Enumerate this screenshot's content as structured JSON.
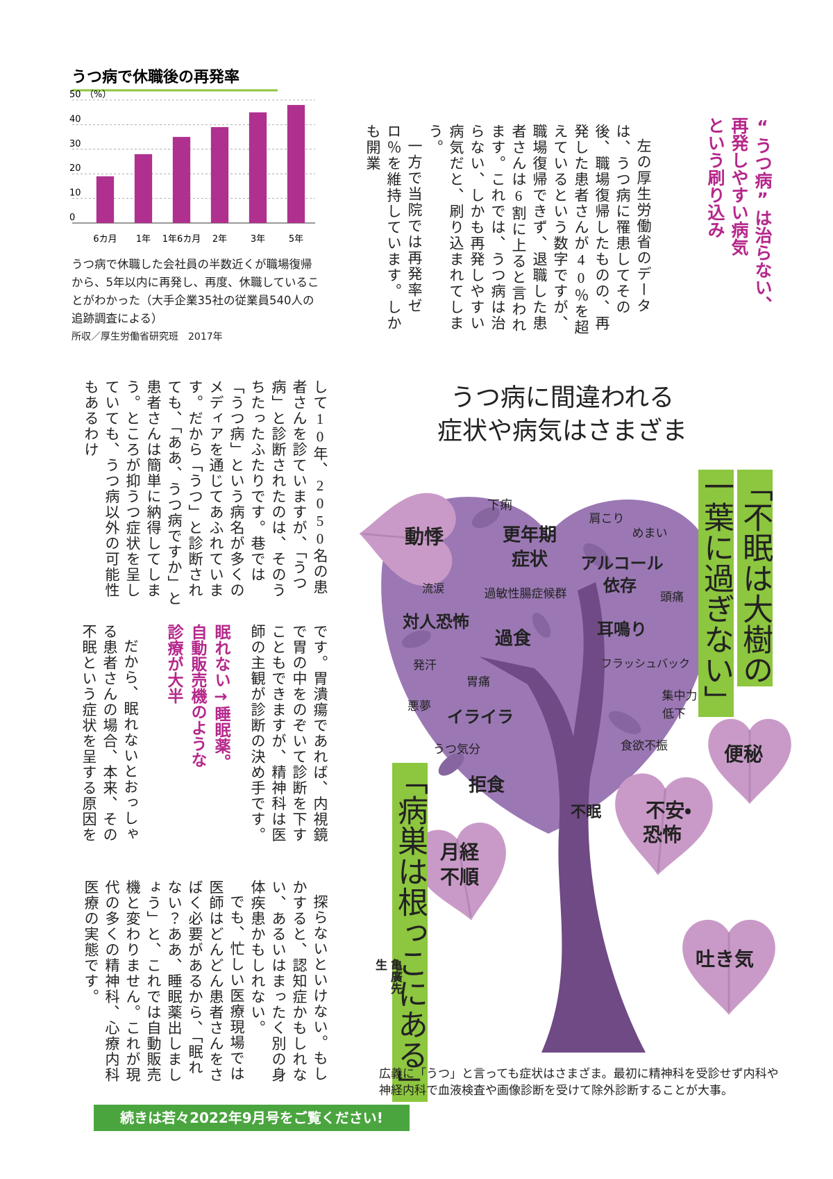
{
  "chart_data": {
    "type": "bar",
    "title": "うつ病で休職後の再発率",
    "y_unit": "（%）",
    "categories": [
      "6カ月",
      "1年",
      "1年6カ月",
      "2年",
      "3年",
      "5年"
    ],
    "values": [
      19,
      28,
      35,
      39,
      45,
      48
    ],
    "color": "#b0308f",
    "ylim": [
      0,
      50
    ],
    "yticks": [
      0,
      10,
      20,
      30,
      40,
      50
    ],
    "grid": true
  },
  "chart_caption": "うつ病で休職した会社員の半数近くが職場復帰から、5年以内に再発し、再度、休職していることがわかった（大手企業35社の従業員540人の追跡調査による）",
  "chart_source": "所収／厚生労働省研究班　2017年",
  "heading": {
    "lines": [
      "“うつ病”は治らない、",
      "再発しやすい病気",
      "という刷り込み"
    ]
  },
  "body": {
    "top": [
      "左の厚生労働省のデータは、うつ病に罹患してその後、職場復帰したものの、再発した患者さんが40％を超えているという数字ですが、職場復帰できず、退職した患者さんは6割に上ると言われます。これでは、うつ病は治らない、しかも再発しやすい病気だと、刷り込まれてしまう。",
      "一方で当院では再発率ゼロ％を維持しています。しかも開業"
    ],
    "tier1": "して10年、2050名の患者さんを診ていますが、「うつ病」と診断されたのは、そのうちたったふたりです。巷では「うつ病」という病名が多くのメディアを通じてあふれています。だから「うつ」と診断されても、「ああ、うつ病ですか」と患者さんは簡単に納得してしまう。ところが抑うつ症状を呈していても、うつ病以外の可能性もあるわけ",
    "tier2a": "です。胃潰瘍であれば、内視鏡で胃の中をのぞいて診断を下すこともできますが、精神科は医師の主観が診断の決め手です。",
    "subheading": [
      "眠れない→睡眠薬。",
      "自動販売機のような",
      "診療が大半"
    ],
    "tier2b": "だから、眠れないとおっしゃる患者さんの場合、本来、その不眠という症状を呈する原因を",
    "tier3": [
      "探らないといけない。もしかすると、認知症かもしれない、あるいはまったく別の身体疾患かもしれない。",
      "でも、忙しい医療現場では医師はどんどん患者さんをさばく必要があるから、「眠れない？ああ、睡眠薬出しましょう」と、これでは自動販売機と変わりません。これが現代の多くの精神科、心療内科医療の実態です。"
    ]
  },
  "illustration": {
    "title_lines": [
      "うつ病に間違われる",
      "症状や病気はさまざま"
    ],
    "labels": [
      "下痢",
      "肩こり",
      "めまい",
      "動悸",
      "更年期",
      "症状",
      "アルコール",
      "依存",
      "流涙",
      "過敏性腸症候群",
      "頭痛",
      "対人恐怖",
      "過食",
      "耳鳴り",
      "発汗",
      "フラッシュバック",
      "胃痛",
      "集中力",
      "低下",
      "悪夢",
      "イライラ",
      "うつ気分",
      "食欲不振",
      "便秘",
      "拒食",
      "不眠",
      "不安・",
      "恐怖",
      "月経",
      "不順",
      "吐き気"
    ],
    "quote1_lines": [
      "「不眠は大樹の",
      "一葉に過ぎない」"
    ],
    "quote2": "「病巣は根っこにある」",
    "doctor": "亀廣先生",
    "caption": "広義に「うつ」と言っても症状はさまざま。最初に精神科を受診せず内科や神経内科で血液検査や画像診断を受けて除外診断することが大事。"
  },
  "footer": "続きは若々2022年9月号をご覧ください!"
}
